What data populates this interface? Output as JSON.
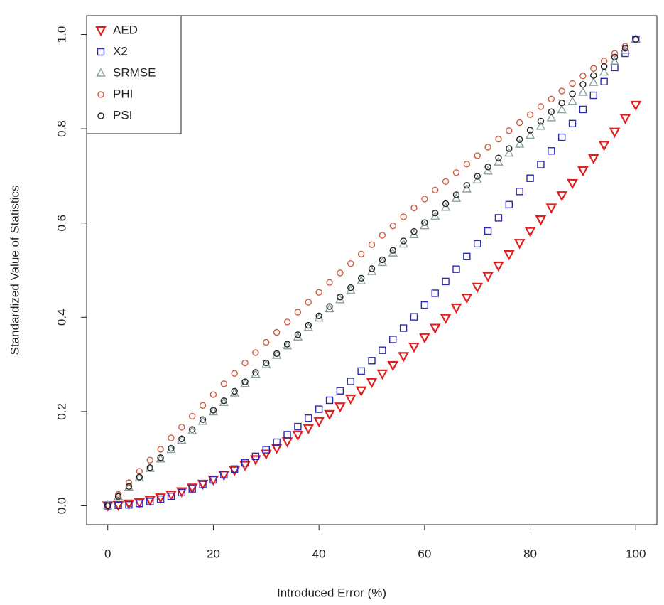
{
  "chart_data": {
    "type": "scatter",
    "xlabel": "Introduced Error (%)",
    "ylabel": "Standardized Value of Statistics",
    "x": [
      0,
      2,
      4,
      6,
      8,
      10,
      12,
      14,
      16,
      18,
      20,
      22,
      24,
      26,
      28,
      30,
      32,
      34,
      36,
      38,
      40,
      42,
      44,
      46,
      48,
      50,
      52,
      54,
      56,
      58,
      60,
      62,
      64,
      66,
      68,
      70,
      72,
      74,
      76,
      78,
      80,
      82,
      84,
      86,
      88,
      90,
      92,
      94,
      96,
      98,
      100
    ],
    "series": [
      {
        "name": "AED",
        "color": "#e02020",
        "marker": "down-triangle",
        "values": [
          0,
          0.001,
          0.004,
          0.007,
          0.012,
          0.017,
          0.023,
          0.03,
          0.038,
          0.046,
          0.055,
          0.065,
          0.075,
          0.086,
          0.098,
          0.11,
          0.122,
          0.136,
          0.15,
          0.164,
          0.179,
          0.194,
          0.21,
          0.227,
          0.244,
          0.262,
          0.28,
          0.298,
          0.317,
          0.337,
          0.357,
          0.377,
          0.398,
          0.42,
          0.441,
          0.464,
          0.487,
          0.509,
          0.533,
          0.557,
          0.582,
          0.607,
          0.632,
          0.658,
          0.684,
          0.711,
          0.737,
          0.765,
          0.793,
          0.822,
          0.85
        ]
      },
      {
        "name": "X2",
        "color": "#2a2ab4",
        "marker": "square",
        "values": [
          0,
          0.001,
          0.002,
          0.005,
          0.009,
          0.014,
          0.02,
          0.028,
          0.036,
          0.045,
          0.055,
          0.066,
          0.078,
          0.091,
          0.105,
          0.119,
          0.135,
          0.151,
          0.168,
          0.186,
          0.205,
          0.224,
          0.244,
          0.264,
          0.286,
          0.308,
          0.33,
          0.353,
          0.377,
          0.401,
          0.426,
          0.451,
          0.476,
          0.502,
          0.529,
          0.556,
          0.583,
          0.611,
          0.639,
          0.667,
          0.695,
          0.724,
          0.753,
          0.782,
          0.811,
          0.841,
          0.871,
          0.9,
          0.93,
          0.96,
          0.99
        ]
      },
      {
        "name": "SRMSE",
        "color": "#8aa0a0",
        "marker": "triangle",
        "values": [
          0,
          0.019,
          0.039,
          0.059,
          0.079,
          0.099,
          0.119,
          0.139,
          0.159,
          0.179,
          0.199,
          0.219,
          0.239,
          0.259,
          0.279,
          0.299,
          0.319,
          0.339,
          0.358,
          0.378,
          0.398,
          0.418,
          0.437,
          0.457,
          0.477,
          0.497,
          0.516,
          0.536,
          0.555,
          0.575,
          0.594,
          0.614,
          0.633,
          0.652,
          0.672,
          0.691,
          0.71,
          0.729,
          0.748,
          0.767,
          0.786,
          0.805,
          0.823,
          0.84,
          0.858,
          0.877,
          0.898,
          0.92,
          0.942,
          0.966,
          0.99
        ]
      },
      {
        "name": "PHI",
        "color": "#d05a40",
        "marker": "circle",
        "values": [
          0,
          0.024,
          0.049,
          0.073,
          0.097,
          0.12,
          0.144,
          0.167,
          0.19,
          0.213,
          0.236,
          0.259,
          0.281,
          0.303,
          0.325,
          0.347,
          0.368,
          0.39,
          0.411,
          0.432,
          0.453,
          0.474,
          0.494,
          0.514,
          0.534,
          0.554,
          0.574,
          0.594,
          0.613,
          0.632,
          0.651,
          0.67,
          0.688,
          0.707,
          0.725,
          0.743,
          0.761,
          0.778,
          0.796,
          0.813,
          0.83,
          0.847,
          0.863,
          0.88,
          0.896,
          0.912,
          0.928,
          0.944,
          0.96,
          0.975,
          0.99
        ]
      },
      {
        "name": "PSI",
        "color": "#222222",
        "marker": "circle",
        "values": [
          0,
          0.02,
          0.041,
          0.061,
          0.081,
          0.102,
          0.122,
          0.142,
          0.162,
          0.183,
          0.203,
          0.223,
          0.243,
          0.263,
          0.283,
          0.303,
          0.323,
          0.343,
          0.363,
          0.383,
          0.403,
          0.423,
          0.443,
          0.463,
          0.483,
          0.503,
          0.522,
          0.542,
          0.562,
          0.582,
          0.601,
          0.621,
          0.641,
          0.66,
          0.68,
          0.699,
          0.719,
          0.738,
          0.758,
          0.777,
          0.797,
          0.816,
          0.836,
          0.855,
          0.874,
          0.894,
          0.913,
          0.932,
          0.952,
          0.971,
          0.99
        ]
      }
    ],
    "xlim": [
      -4,
      104
    ],
    "xticks": [
      0,
      20,
      40,
      60,
      80,
      100
    ],
    "ylim": [
      -0.04,
      1.04
    ],
    "yticks": [
      {
        "value": 0,
        "label": "0.0"
      },
      0.2,
      0.4,
      0.6,
      0.8,
      {
        "value": 1,
        "label": "1.0"
      }
    ],
    "legend": "top-left",
    "grid": false
  }
}
